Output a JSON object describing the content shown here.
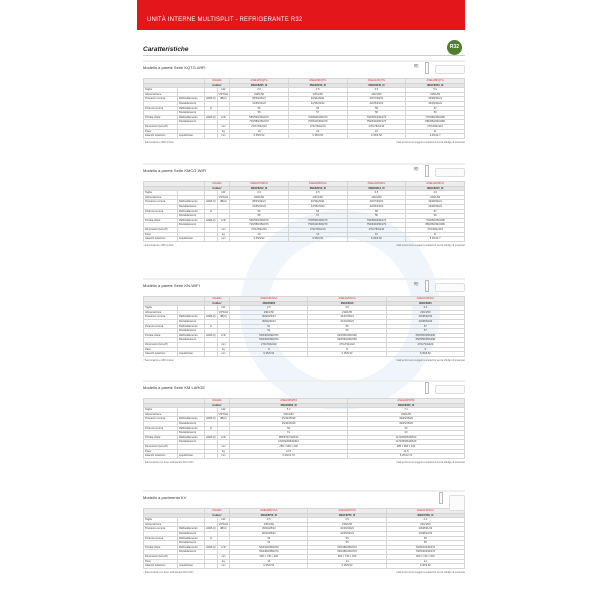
{
  "header": {
    "title": "UNITÀ INTERNE MULTISPLIT - REFRIGERANTE R32",
    "badge": "R32"
  },
  "heading": "Caratteristiche",
  "common": {
    "model_label": "Modello",
    "code_label": "Codice¹",
    "note_right": "I dati tecnici sono soggetti a variazioni senza obbligo di preavviso"
  },
  "sections": [
    {
      "title": "Modello a parete Serie KQTG-WIFI",
      "icon": "wall-unit",
      "footnote": "¹ Telecomando e WIFI inclusi",
      "models": [
        "ASEH07KQTG",
        "ASEH09KQTG",
        "ASEH12KQTG",
        "ASEH18KQTG"
      ],
      "codes": [
        "3NGF8235_I0",
        "3NGF8240_I0",
        "3NGF8245_I0",
        "3NGF8250_I0"
      ],
      "rows": [
        [
          "Taglia",
          "",
          "",
          "kW",
          [
            "2.0",
            "2.5",
            "3.5",
            "5.0"
          ]
        ],
        [
          "Alimentazione",
          "",
          "",
          "V/Ph/Hz",
          [
            "230/1/50",
            "230/1/50",
            "230/1/50",
            "230/1/50"
          ]
        ],
        [
          "Pressione sonora",
          "Raffreddamento",
          "H/M/L/Q",
          "dB(A)",
          [
            "38/33/24/21",
            "40/34/29/21",
            "40/37/30/21",
            "45/38/33/21"
          ]
        ],
        [
          "",
          "Riscaldamento",
          "",
          "",
          [
            "41/35/31/22",
            "42/35/33/22",
            "42/35/33/22",
            "44/39/33/24"
          ]
        ],
        [
          "Potenza sonora",
          "Raffreddamento",
          "H",
          "",
          [
            "56",
            "56",
            "58",
            "57"
          ]
        ],
        [
          "",
          "Riscaldamento",
          "",
          "",
          [
            "58",
            "57",
            "58",
            "59"
          ]
        ],
        [
          "Portata d'aria",
          "Raffreddamento",
          "H/M/L/Q",
          "m³/h",
          [
            "550/540/430/270",
            "700/590/430/270",
            "700/560/430/270",
            "770/660/450/280"
          ]
        ],
        [
          "",
          "Riscaldamento",
          "",
          "",
          [
            "720/580/450/270",
            "750/640/450/270",
            "750/640/450/270",
            "880/660/340/280"
          ]
        ],
        [
          "Dimensioni (HxLxP)",
          "",
          "",
          "mm",
          [
            "270x784x210",
            "270x784x210",
            "270x784x210",
            "270x834x215"
          ]
        ],
        [
          "Peso",
          "",
          "",
          "kg",
          [
            "10",
            "10",
            "10",
            "11"
          ]
        ],
        [
          "Attacchi tubazioni",
          "Liquido/Gas",
          "",
          "mm",
          [
            "6.35/9.52",
            "6.35/9.52",
            "6.35/9.52",
            "6.35/12.7"
          ]
        ]
      ]
    },
    {
      "title": "Modello a parete Serie KMCG-WIFI",
      "icon": "wall-unit",
      "footnote": "¹ Telecomando e WIFI inclusi",
      "models": [
        "ASEH07KMCG",
        "ASEH09KMCG",
        "ASEH12KMCG",
        "ASEH14KMCG"
      ],
      "codes": [
        "3NGF8212_I0",
        "3NGF8213_I0",
        "3NGF8214_I0",
        "3NGF8215_I0"
      ],
      "rows": [
        [
          "Taglia",
          "",
          "",
          "kW",
          [
            "2.0",
            "2.5",
            "3.5",
            "4.0"
          ]
        ],
        [
          "Alimentazione",
          "",
          "",
          "V/Ph/Hz",
          [
            "230/1/50",
            "230/1/50",
            "230/1/50",
            "230/1/50"
          ]
        ],
        [
          "Pressione sonora",
          "Raffreddamento",
          "H/M/L/Q",
          "dB(A)",
          [
            "38/33/24/21",
            "40/34/29/21",
            "40/37/30/21",
            "43/38/33/21"
          ]
        ],
        [
          "",
          "Riscaldamento",
          "",
          "",
          [
            "41/35/31/22",
            "42/35/33/22",
            "42/35/33/22",
            "44/38/33/24"
          ]
        ],
        [
          "Potenza sonora",
          "Raffreddamento",
          "H",
          "",
          [
            "56",
            "56",
            "58",
            "57"
          ]
        ],
        [
          "",
          "Riscaldamento",
          "",
          "",
          [
            "58",
            "57",
            "58",
            "59"
          ]
        ],
        [
          "Portata d'aria",
          "Raffreddamento",
          "H/M/L/Q",
          "m³/h",
          [
            "550/540/430/270",
            "700/590/430/270",
            "700/560/430/270",
            "770/660/450/280"
          ]
        ],
        [
          "",
          "Riscaldamento",
          "",
          "",
          [
            "720/580/450/270",
            "750/640/450/270",
            "750/640/450/270",
            "880/660/340/280"
          ]
        ],
        [
          "Dimensioni (HxLxP)",
          "",
          "",
          "mm",
          [
            "270x784x210",
            "270x784x210",
            "270x784x210",
            "270x834x215"
          ]
        ],
        [
          "Peso",
          "",
          "",
          "kg",
          [
            "10",
            "10",
            "10",
            "11"
          ]
        ],
        [
          "Attacchi tubazioni",
          "Liquido/Gas",
          "",
          "mm",
          [
            "6.35/9.52",
            "6.35/9.52",
            "6.35/9.52",
            "6.35/12.7"
          ]
        ]
      ]
    },
    {
      "title": "Modello a parete Serie KN-WIFI",
      "icon": "wall-unit",
      "footnote": "¹ Telecomando e WIFI inclusi",
      "models": [
        "ASEH09KNCA",
        "ASEH12KNCA",
        "ASEH14KNCA"
      ],
      "codes": [
        "3NGF8900",
        "3NGF8910",
        "3NGF8920"
      ],
      "rows": [
        [
          "Taglia",
          "",
          "",
          "kW",
          [
            "2.5",
            "3.5",
            "4.0"
          ]
        ],
        [
          "Alimentazione",
          "",
          "",
          "V/Ph/Hz",
          [
            "230/1/50",
            "230/1/50",
            "230/1/50"
          ]
        ],
        [
          "Pressione sonora",
          "Raffreddamento",
          "H/M/L/Q",
          "dB(A)",
          [
            "36/33/29/24",
            "41/37/30/21",
            "42/38/32/24"
          ]
        ],
        [
          "",
          "Riscaldamento",
          "",
          "",
          [
            "36/34/30/22",
            "41/34/30/22",
            "42/38/33/22"
          ]
        ],
        [
          "Potenza sonora",
          "Raffreddamento",
          "H",
          "",
          [
            "51",
            "56",
            "57"
          ]
        ],
        [
          "",
          "Riscaldamento",
          "",
          "",
          [
            "51",
            "56",
            "57"
          ]
        ],
        [
          "Portata d'aria",
          "Raffreddamento",
          "H/M/L/Q",
          "m³/h",
          [
            "530/460/390/250",
            "630/560/490/290",
            "650/550/450/290"
          ]
        ],
        [
          "",
          "Riscaldamento",
          "",
          "",
          [
            "530/460/390/250",
            "630/560/490/290",
            "650/550/450/290"
          ]
        ],
        [
          "Dimensioni (HxLxP)",
          "",
          "",
          "mm",
          [
            "270x794x222",
            "270x794x222",
            "270x794x222"
          ]
        ],
        [
          "Peso",
          "",
          "",
          "kg",
          [
            "8",
            "8",
            "9"
          ]
        ],
        [
          "Attacchi tubazioni",
          "Liquido/Gas",
          "",
          "mm",
          [
            "6.35/9.52",
            "6.35/9.52",
            "6.35/9.52"
          ]
        ]
      ]
    },
    {
      "title": "Modello a parete Serie KM LARGE",
      "icon": "wall-unit",
      "footnote": "¹ Telecomando con timer settimanale INCLUSO",
      "models": [
        "ASEH18KMTA",
        "ASEH24KMTA"
      ],
      "codes": [
        "3NGF8260_I0",
        "3NGF8265_I0"
      ],
      "rows": [
        [
          "Taglia",
          "",
          "",
          "kW",
          [
            "5.2",
            "7.1"
          ]
        ],
        [
          "Alimentazione",
          "",
          "",
          "V/Ph/Hz",
          [
            "230/1/50",
            "230/1/50"
          ]
        ],
        [
          "Pressione sonora",
          "Raffreddamento",
          "H/M/L/Q",
          "dB(A)",
          [
            "45/42/35/29",
            "49/45/35/29"
          ]
        ],
        [
          "",
          "Riscaldamento",
          "",
          "",
          [
            "45/40/35/29",
            "49/45/35/29"
          ]
        ],
        [
          "Potenza sonora",
          "Raffreddamento",
          "H",
          "",
          [
            "60",
            "63"
          ]
        ],
        [
          "",
          "Riscaldamento",
          "",
          "",
          [
            "61",
            "63"
          ]
        ],
        [
          "Portata d'aria",
          "Raffreddamento",
          "H/M/L/Q",
          "m³/h",
          [
            "980/870/740/610",
            "1170/950/640/510"
          ]
        ],
        [
          "",
          "Riscaldamento",
          "",
          "",
          [
            "1020/920/840/610",
            "1170/950/640/510"
          ]
        ],
        [
          "Dimensioni (HxLxP)",
          "",
          "",
          "mm",
          [
            "285 x 990 x 240",
            "285 x 990 x 240"
          ]
        ],
        [
          "Peso",
          "",
          "",
          "kg",
          [
            "12.5",
            "12.5"
          ]
        ],
        [
          "Attacchi tubazioni",
          "Liquido/Gas",
          "",
          "mm",
          [
            "6.35/12.70",
            "6.35/12.70"
          ]
        ]
      ]
    },
    {
      "title": "Modello a pavimento KV",
      "icon": "floor-unit",
      "footnote": "¹ Telecomando con timer settimanale INCLUSO",
      "models": [
        "AGEH09KVCA",
        "AGEH12KVCA",
        "AGEH14KVCA"
      ],
      "codes": [
        "3NGF8750_I0",
        "3NGF8755_I0",
        "3NGF8760_I0"
      ],
      "rows": [
        [
          "Taglia",
          "",
          "",
          "kW",
          [
            "2.5",
            "3.5",
            "4.0"
          ]
        ],
        [
          "Alimentazione",
          "",
          "",
          "V/Ph/Hz",
          [
            "230/1/50",
            "230/1/50",
            "230/1/50"
          ]
        ],
        [
          "Pressione sonora",
          "Raffreddamento",
          "H/M/L/Q",
          "dB(A)",
          [
            "39/33/28/22",
            "42/36/30/22",
            "43/38/31/22"
          ]
        ],
        [
          "",
          "Riscaldamento",
          "",
          "",
          [
            "39/33/28/22",
            "42/35/32/22",
            "43/38/32/22"
          ]
        ],
        [
          "Potenza sonora",
          "Raffreddamento",
          "H",
          "",
          [
            "52",
            "55",
            "56"
          ]
        ],
        [
          "",
          "Riscaldamento",
          "",
          "",
          [
            "52",
            "55",
            "56"
          ]
        ],
        [
          "Portata d'aria",
          "Raffreddamento",
          "H/M/L/Q",
          "m³/h",
          [
            "520/440/350/230",
            "600/480/380/270",
            "700/520/440/270"
          ]
        ],
        [
          "",
          "Riscaldamento",
          "",
          "",
          [
            "530/480/380/270",
            "600/480/400/270",
            "700/540/440/270"
          ]
        ],
        [
          "Dimensioni (HxLxP)",
          "",
          "",
          "mm",
          [
            "600 x 740 x 200",
            "600 x 740 x 200",
            "600 x 740 x 200"
          ]
        ],
        [
          "Peso",
          "",
          "",
          "kg",
          [
            "14",
            "14",
            "14"
          ]
        ],
        [
          "Attacchi tubazioni",
          "Liquido/Gas",
          "",
          "mm",
          [
            "6.35/9.52",
            "6.35/9.52",
            "6.35/9.52"
          ]
        ]
      ]
    }
  ]
}
